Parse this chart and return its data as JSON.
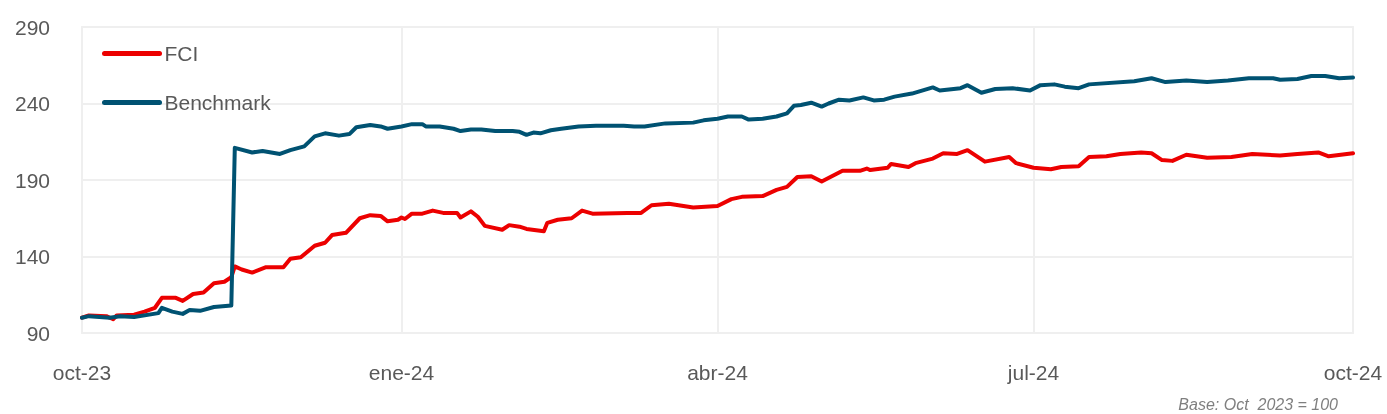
{
  "chart_data": {
    "type": "line",
    "xlim": [
      "2023-10-01",
      "2024-10-01"
    ],
    "xticks": [
      {
        "value": "2023-10-01",
        "label": "oct-23"
      },
      {
        "value": "2024-01-01",
        "label": "ene-24"
      },
      {
        "value": "2024-04-01",
        "label": "abr-24"
      },
      {
        "value": "2024-07-01",
        "label": "jul-24"
      },
      {
        "value": "2024-10-01",
        "label": "oct-24"
      }
    ],
    "ylim": [
      90,
      290
    ],
    "yticks": [
      90,
      140,
      190,
      240,
      290
    ],
    "grid": true,
    "legend": "top left",
    "marker": "none",
    "line_style": "solid",
    "annotations": [
      "Base: Oct  2023 = 100"
    ],
    "series": [
      {
        "name": "FCI",
        "color": "#ec0000",
        "x": [
          "2023-10-01",
          "2023-10-03",
          "2023-10-08",
          "2023-10-10",
          "2023-10-11",
          "2023-10-16",
          "2023-10-19",
          "2023-10-22",
          "2023-10-24",
          "2023-10-28",
          "2023-10-30",
          "2023-11-02",
          "2023-11-05",
          "2023-11-08",
          "2023-11-11",
          "2023-11-13",
          "2023-11-14",
          "2023-11-16",
          "2023-11-19",
          "2023-11-23",
          "2023-11-28",
          "2023-11-30",
          "2023-12-03",
          "2023-12-07",
          "2023-12-10",
          "2023-12-12",
          "2023-12-16",
          "2023-12-20",
          "2023-12-23",
          "2023-12-26",
          "2023-12-28",
          "2023-12-31",
          "2024-01-01",
          "2024-01-02",
          "2024-01-04",
          "2024-01-07",
          "2024-01-10",
          "2024-01-13",
          "2024-01-17",
          "2024-01-18",
          "2024-01-21",
          "2024-01-23",
          "2024-01-25",
          "2024-01-30",
          "2024-02-01",
          "2024-02-04",
          "2024-02-06",
          "2024-02-11",
          "2024-02-12",
          "2024-02-15",
          "2024-02-19",
          "2024-02-22",
          "2024-02-25",
          "2024-03-06",
          "2024-03-10",
          "2024-03-13",
          "2024-03-18",
          "2024-03-25",
          "2024-04-01",
          "2024-04-05",
          "2024-04-08",
          "2024-04-14",
          "2024-04-18",
          "2024-04-21",
          "2024-04-24",
          "2024-04-28",
          "2024-05-01",
          "2024-05-07",
          "2024-05-12",
          "2024-05-14",
          "2024-05-15",
          "2024-05-20",
          "2024-05-21",
          "2024-05-26",
          "2024-05-28",
          "2024-06-02",
          "2024-06-05",
          "2024-06-09",
          "2024-06-12",
          "2024-06-17",
          "2024-06-24",
          "2024-06-26",
          "2024-07-01",
          "2024-07-06",
          "2024-07-09",
          "2024-07-14",
          "2024-07-17",
          "2024-07-22",
          "2024-07-26",
          "2024-08-01",
          "2024-08-04",
          "2024-08-07",
          "2024-08-10",
          "2024-08-14",
          "2024-08-20",
          "2024-08-27",
          "2024-09-02",
          "2024-09-10",
          "2024-09-15",
          "2024-09-21",
          "2024-09-24",
          "2024-10-01"
        ],
        "values": [
          100,
          101.5,
          101,
          99,
          101.5,
          102,
          104,
          106.5,
          113,
          113,
          111,
          115.5,
          116.5,
          122.5,
          123.5,
          126.5,
          133.5,
          131.5,
          129.5,
          133,
          133,
          138.5,
          139.5,
          147,
          149,
          154,
          155.5,
          165,
          167,
          166.5,
          163,
          164,
          165.5,
          164.5,
          168,
          168,
          170,
          168.5,
          168.5,
          165.5,
          169.5,
          166,
          160,
          157.5,
          160.5,
          159.5,
          158,
          156.5,
          162,
          164,
          165,
          170,
          168,
          168.5,
          168.5,
          173.5,
          174.5,
          172,
          173,
          177.5,
          179,
          179.5,
          183.5,
          185.5,
          192,
          192.5,
          189,
          196,
          196,
          197.5,
          196.5,
          198,
          200.5,
          198.5,
          201,
          204,
          207.5,
          207,
          209.5,
          202,
          205,
          201,
          198,
          197,
          198.5,
          199,
          205,
          205.5,
          207,
          208,
          207.5,
          203,
          202.5,
          206.5,
          204.5,
          205,
          207,
          206,
          207,
          208,
          205.5,
          207.5
        ]
      },
      {
        "name": "Benchmark",
        "color": "#005272",
        "x": [
          "2023-10-01",
          "2023-10-03",
          "2023-10-09",
          "2023-10-12",
          "2023-10-16",
          "2023-10-23",
          "2023-10-24",
          "2023-10-27",
          "2023-10-30",
          "2023-11-01",
          "2023-11-04",
          "2023-11-08",
          "2023-11-13",
          "2023-11-14",
          "2023-11-19",
          "2023-11-22",
          "2023-11-27",
          "2023-11-30",
          "2023-12-04",
          "2023-12-07",
          "2023-12-10",
          "2023-12-14",
          "2023-12-17",
          "2023-12-19",
          "2023-12-23",
          "2023-12-26",
          "2023-12-28",
          "2024-01-01",
          "2024-01-04",
          "2024-01-07",
          "2024-01-08",
          "2024-01-12",
          "2024-01-16",
          "2024-01-18",
          "2024-01-21",
          "2024-01-24",
          "2024-01-28",
          "2024-02-02",
          "2024-02-04",
          "2024-02-06",
          "2024-02-08",
          "2024-02-10",
          "2024-02-13",
          "2024-02-16",
          "2024-02-21",
          "2024-02-26",
          "2024-03-05",
          "2024-03-08",
          "2024-03-11",
          "2024-03-17",
          "2024-03-25",
          "2024-03-28",
          "2024-04-01",
          "2024-04-04",
          "2024-04-08",
          "2024-04-10",
          "2024-04-14",
          "2024-04-18",
          "2024-04-21",
          "2024-04-23",
          "2024-04-25",
          "2024-04-28",
          "2024-05-01",
          "2024-05-03",
          "2024-05-06",
          "2024-05-09",
          "2024-05-13",
          "2024-05-16",
          "2024-05-19",
          "2024-05-22",
          "2024-05-27",
          "2024-06-02",
          "2024-06-04",
          "2024-06-10",
          "2024-06-12",
          "2024-06-16",
          "2024-06-20",
          "2024-06-25",
          "2024-06-30",
          "2024-07-03",
          "2024-07-07",
          "2024-07-10",
          "2024-07-14",
          "2024-07-17",
          "2024-07-30",
          "2024-08-04",
          "2024-08-08",
          "2024-08-14",
          "2024-08-20",
          "2024-08-26",
          "2024-09-01",
          "2024-09-08",
          "2024-09-10",
          "2024-09-15",
          "2024-09-19",
          "2024-09-23",
          "2024-09-27",
          "2024-10-01"
        ],
        "values": [
          100,
          101,
          100,
          101,
          100.5,
          103,
          106.5,
          104,
          102.5,
          105,
          104.5,
          107,
          108,
          211,
          208,
          209,
          207,
          209.5,
          212,
          218.5,
          220.5,
          219,
          220,
          224.5,
          226,
          225,
          223.5,
          225,
          226.5,
          226.5,
          225,
          225,
          223.5,
          222,
          223,
          223,
          222,
          222,
          221.5,
          219.5,
          221,
          220.5,
          222.5,
          223.5,
          225,
          225.5,
          225.5,
          225,
          225,
          227,
          227.5,
          229,
          230,
          231.5,
          231.5,
          229.5,
          230,
          231.5,
          233.5,
          238.5,
          239,
          240.5,
          238,
          240,
          242.5,
          242,
          244,
          242,
          242.5,
          244.5,
          246.5,
          250.5,
          248.5,
          250,
          252,
          247,
          249.5,
          250,
          248.5,
          252,
          252.5,
          251,
          250,
          252.5,
          254.5,
          256.5,
          254,
          255,
          254,
          255,
          256.5,
          256.5,
          255.5,
          256,
          258,
          258,
          256.5,
          257
        ]
      }
    ]
  }
}
